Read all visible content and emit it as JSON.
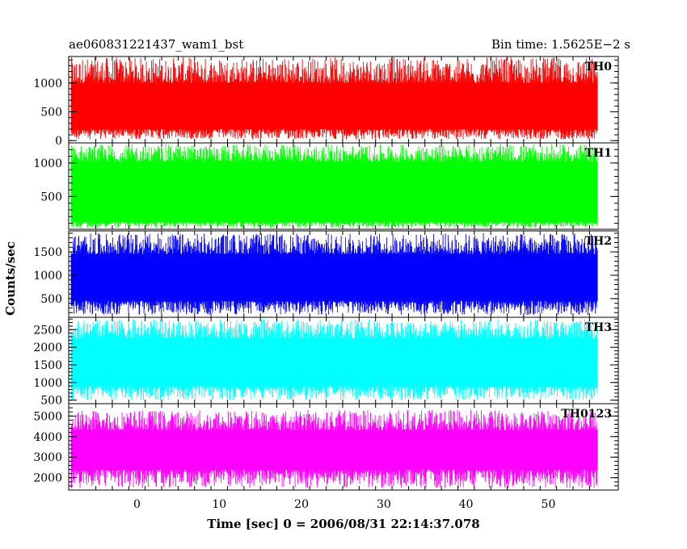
{
  "header": {
    "title_left": "ae060831221437_wam1_bst",
    "title_right": "Bin time: 1.5625E−2 s"
  },
  "chart_data": {
    "type": "line",
    "xlabel": "Time [sec] 0 = 2006/08/31 22:14:37.078",
    "ylabel": "Counts/sec",
    "xlim": [
      -8.3,
      58.5
    ],
    "x_ticks": [
      0,
      10,
      20,
      30,
      40,
      50
    ],
    "x_range_data": [
      -8,
      56
    ],
    "bin_time": 0.015625,
    "series": [
      {
        "name": "TH0",
        "color": "#ff0000",
        "ylim": [
          -40,
          1460
        ],
        "y_ticks": [
          0,
          500,
          1000
        ],
        "band": [
          200,
          1000
        ],
        "spike_low": 20,
        "spike_high": 1450
      },
      {
        "name": "TH1",
        "color": "#00ff00",
        "ylim": [
          10,
          1300
        ],
        "y_ticks": [
          500,
          1000
        ],
        "band": [
          120,
          1020
        ],
        "spike_low": 30,
        "spike_high": 1280
      },
      {
        "name": "TH2",
        "color": "#0000ff",
        "ylim": [
          100,
          1950
        ],
        "y_ticks": [
          500,
          1000,
          1500
        ],
        "band": [
          450,
          1450
        ],
        "spike_low": 150,
        "spike_high": 1900
      },
      {
        "name": "TH3",
        "color": "#00ffff",
        "ylim": [
          400,
          2850
        ],
        "y_ticks": [
          500,
          1000,
          1500,
          2000,
          2500
        ],
        "band": [
          900,
          2250
        ],
        "spike_low": 500,
        "spike_high": 2800
      },
      {
        "name": "TH0123",
        "color": "#ff00ff",
        "ylim": [
          1400,
          5600
        ],
        "y_ticks": [
          2000,
          3000,
          4000,
          5000
        ],
        "band": [
          2400,
          4300
        ],
        "spike_low": 1500,
        "spike_high": 5300
      }
    ]
  }
}
